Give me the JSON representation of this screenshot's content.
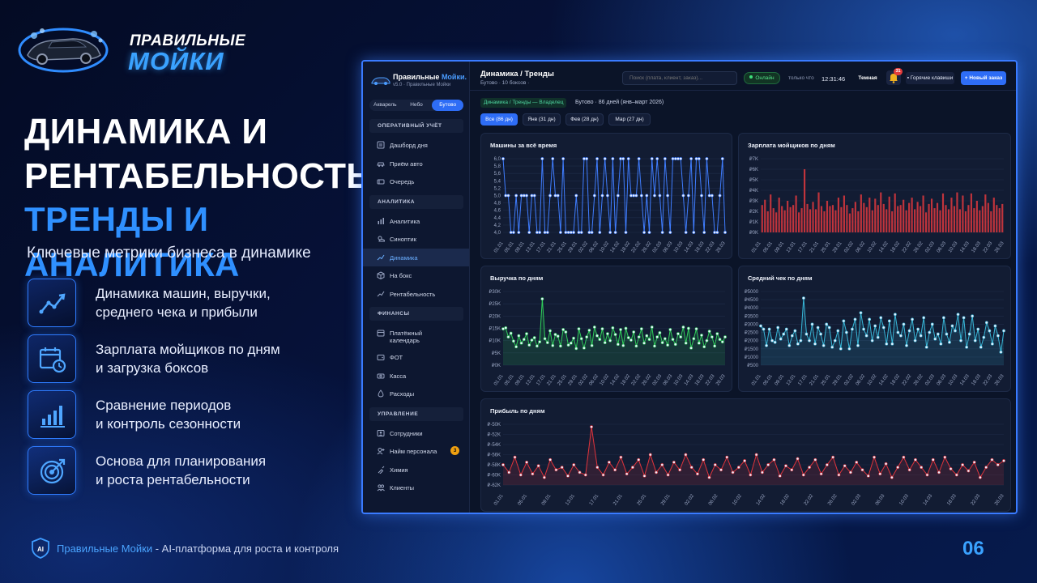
{
  "brand": {
    "line1": "ПРАВИЛЬНЫЕ",
    "line2": "МОЙКИ"
  },
  "headline": {
    "line1": "ДИНАМИКА И",
    "line2": "РЕНТАБЕЛЬНОСТЬ",
    "line3": "ТРЕНДЫ И АНАЛИТИКА"
  },
  "subtitle": "Ключевые метрики бизнеса в динамике",
  "features": [
    {
      "icon": "trend-line-icon",
      "line1": "Динамика машин, выручки,",
      "line2": "среднего чека и прибыли"
    },
    {
      "icon": "calendar-clock-icon",
      "line1": "Зарплата мойщиков по дням",
      "line2": "и загрузка боксов"
    },
    {
      "icon": "bar-chart-icon",
      "line1": "Сравнение периодов",
      "line2": "и контроль сезонности"
    },
    {
      "icon": "target-icon",
      "line1": "Основа для планирования",
      "line2": "и роста рентабельности"
    }
  ],
  "footer": {
    "brand": "Правильные Мойки",
    "rest": " - AI-платформа для роста и контроля",
    "badge": "AI"
  },
  "page_number": "06",
  "app": {
    "brand": {
      "name": "Правильные",
      "accent": "Мойки.",
      "sub": "v5.0 · Правильные Мойки"
    },
    "locations": [
      {
        "label": "Акварель",
        "active": false
      },
      {
        "label": "Небо",
        "active": false
      },
      {
        "label": "Бутово",
        "active": true
      }
    ],
    "sidebar": [
      {
        "group": "ОПЕРАТИВНЫЙ УЧЁТ",
        "items": [
          {
            "label": "Дашборд дня",
            "icon": "list-icon"
          },
          {
            "label": "Приём авто",
            "icon": "car-icon"
          },
          {
            "label": "Очередь",
            "icon": "queue-icon"
          }
        ]
      },
      {
        "group": "АНАЛИТИКА",
        "items": [
          {
            "label": "Аналитика",
            "icon": "bar-chart-icon"
          },
          {
            "label": "Синоптик",
            "icon": "weather-icon"
          },
          {
            "label": "Динамика",
            "icon": "trend-icon",
            "active": true
          },
          {
            "label": "На бокс",
            "icon": "box-icon"
          },
          {
            "label": "Рентабельность",
            "icon": "trend-icon"
          }
        ]
      },
      {
        "group": "ФИНАНСЫ",
        "items": [
          {
            "label": "Платёжный",
            "label2": "календарь",
            "icon": "calendar-icon"
          },
          {
            "label": "ФОТ",
            "icon": "wallet-icon"
          },
          {
            "label": "Касса",
            "icon": "cash-icon"
          },
          {
            "label": "Расходы",
            "icon": "drop-icon"
          }
        ]
      },
      {
        "group": "УПРАВЛЕНИЕ",
        "items": [
          {
            "label": "Сотрудники",
            "icon": "person-card-icon"
          },
          {
            "label": "Найм персонала",
            "icon": "add-person-icon",
            "badge": "3"
          },
          {
            "label": "Химия",
            "icon": "spray-icon"
          },
          {
            "label": "Клиенты",
            "icon": "people-icon"
          }
        ]
      }
    ],
    "topbar": {
      "title": "Динамика / Тренды",
      "subtitle": "Бутово · 10 боксов ·",
      "search_placeholder": "Поиск (плата, клиент, заказ)...",
      "status": "Онлайн",
      "updated": "только что",
      "time": "12:31:46",
      "theme": "Темная",
      "notifications": "31",
      "hotkeys": "Горячие клавиши",
      "new_order": "+ Новый заказ"
    },
    "breadcrumb": "Динамика / Тренды — Владелец",
    "period_info": "Бутово · 86 дней (янв–март 2026)",
    "period_tabs": [
      {
        "label": "Все (86 дн)",
        "active": true
      },
      {
        "label": "Янв (31 дн)",
        "active": false
      },
      {
        "label": "Фев (28 дн)",
        "active": false
      },
      {
        "label": "Мар (27 дн)",
        "active": false
      }
    ]
  },
  "chart_data": [
    {
      "id": "cars",
      "type": "line",
      "title": "Машины за всё время",
      "yticks": [
        "6,0",
        "5,8",
        "5,6",
        "5,4",
        "5,2",
        "5,0",
        "4,8",
        "4,6",
        "4,4",
        "4,2",
        "4,0"
      ],
      "ylim": [
        4.0,
        6.0
      ],
      "color": "#3f7dff",
      "xticks": [
        "01.01",
        "05.01",
        "09.01",
        "13.01",
        "17.01",
        "21.01",
        "25.01",
        "29.01",
        "02.02",
        "06.02",
        "10.02",
        "14.02",
        "18.02",
        "22.02",
        "26.02",
        "02.03",
        "06.03",
        "10.03",
        "14.03",
        "18.03",
        "22.03",
        "26.03"
      ],
      "values": [
        6,
        5,
        5,
        4,
        4,
        5,
        4,
        5,
        5,
        5,
        4,
        5,
        5,
        4,
        4,
        6,
        4,
        4,
        5,
        6,
        5,
        5,
        4,
        6,
        4,
        4,
        4,
        4,
        5,
        4,
        4,
        6,
        6,
        4,
        4,
        5,
        6,
        4,
        5,
        6,
        5,
        4,
        6,
        4,
        5,
        6,
        6,
        4,
        6,
        5,
        5,
        5,
        6,
        5,
        4,
        5,
        4,
        6,
        5,
        6,
        5,
        4,
        6,
        5,
        4,
        6,
        6,
        6,
        6,
        5,
        4,
        5,
        6,
        4,
        6,
        6,
        5,
        4,
        6,
        5,
        5,
        4,
        4,
        5,
        6,
        4
      ]
    },
    {
      "id": "salary",
      "type": "bar",
      "title": "Зарплата мойщиков по дням",
      "yticks": [
        "₽7K",
        "₽6K",
        "₽5K",
        "₽4K",
        "₽3K",
        "₽2K",
        "₽1K",
        "₽0K"
      ],
      "ylim": [
        0,
        7000
      ],
      "color": "#c0343c",
      "xticks": [
        "01.01",
        "05.01",
        "09.01",
        "13.01",
        "17.01",
        "21.01",
        "25.01",
        "29.01",
        "02.02",
        "06.02",
        "10.02",
        "14.02",
        "18.02",
        "22.02",
        "26.02",
        "02.03",
        "06.03",
        "10.03",
        "14.03",
        "18.03",
        "22.03",
        "26.03"
      ],
      "values": [
        2600,
        3100,
        2000,
        3600,
        2300,
        1900,
        3300,
        2500,
        2100,
        3000,
        2400,
        2600,
        3500,
        1900,
        2300,
        6000,
        2700,
        2200,
        2900,
        2200,
        3800,
        2500,
        2000,
        3000,
        2500,
        2600,
        2100,
        3300,
        2400,
        3500,
        2600,
        1800,
        2300,
        2900,
        2000,
        3600,
        2800,
        2400,
        3300,
        2100,
        3200,
        2600,
        3800,
        2700,
        2200,
        3400,
        2000,
        3700,
        2500,
        2600,
        3100,
        2100,
        2800,
        3300,
        2200,
        2900,
        2500,
        3500,
        1900,
        2700,
        3200,
        2300,
        2800,
        2100,
        3700,
        2600,
        2200,
        3300,
        2500,
        3800,
        2200,
        3500,
        2000,
        2600,
        3700,
        2300,
        3000,
        2100,
        2500,
        3600,
        2800,
        2000,
        3300,
        2600,
        2300,
        2700
      ]
    },
    {
      "id": "revenue",
      "type": "line",
      "title": "Выручка по дням",
      "yticks": [
        "₽30K",
        "₽25K",
        "₽20K",
        "₽15K",
        "₽10K",
        "₽5K",
        "₽0K"
      ],
      "ylim": [
        0,
        30000
      ],
      "color": "#2fcf5a",
      "xticks": [
        "01.01",
        "05.01",
        "09.01",
        "13.01",
        "17.01",
        "21.01",
        "25.01",
        "29.01",
        "02.02",
        "06.02",
        "10.02",
        "14.02",
        "18.02",
        "22.02",
        "26.02",
        "02.03",
        "06.03",
        "10.03",
        "14.03",
        "18.03",
        "22.03",
        "26.03"
      ],
      "values": [
        14800,
        15200,
        11500,
        13000,
        9800,
        7500,
        12000,
        9000,
        10500,
        12800,
        8200,
        10200,
        11200,
        7800,
        9500,
        27000,
        10800,
        9200,
        14000,
        8000,
        12500,
        11800,
        7800,
        14500,
        13500,
        8200,
        9000,
        11000,
        6800,
        14800,
        10800,
        7000,
        11500,
        14200,
        8000,
        15500,
        12000,
        10500,
        14800,
        9200,
        12800,
        10000,
        15200,
        12500,
        8500,
        14500,
        8000,
        15000,
        11200,
        10200,
        13500,
        7800,
        11500,
        14800,
        9000,
        12000,
        10500,
        15500,
        7800,
        11500,
        13200,
        9200,
        10800,
        8200,
        14500,
        10500,
        8500,
        12800,
        11500,
        15500,
        9000,
        15000,
        7000,
        10800,
        14800,
        9000,
        12200,
        7500,
        10000,
        13800,
        11500,
        7800,
        12800,
        10500,
        9500,
        11500
      ]
    },
    {
      "id": "avg_check",
      "type": "line",
      "title": "Средний чек по дням",
      "yticks": [
        "₽5000",
        "₽4500",
        "₽4000",
        "₽3500",
        "₽3000",
        "₽2500",
        "₽2000",
        "₽1500",
        "₽1000",
        "₽500"
      ],
      "ylim": [
        500,
        5000
      ],
      "color": "#38b7d8",
      "xticks": [
        "01.01",
        "05.01",
        "09.01",
        "13.01",
        "17.01",
        "21.01",
        "25.01",
        "29.01",
        "02.02",
        "06.02",
        "10.02",
        "14.02",
        "18.02",
        "22.02",
        "26.02",
        "02.03",
        "06.03",
        "10.03",
        "14.03",
        "18.03",
        "22.03",
        "26.03"
      ],
      "values": [
        2900,
        2700,
        1700,
        2700,
        2000,
        1900,
        2800,
        2100,
        2400,
        2700,
        1700,
        2300,
        2600,
        1800,
        2000,
        4600,
        2400,
        2000,
        3000,
        1800,
        2800,
        2400,
        1700,
        3000,
        2800,
        1600,
        2000,
        2600,
        1500,
        3200,
        2500,
        1500,
        2700,
        3300,
        1700,
        3700,
        2700,
        2300,
        3300,
        2000,
        2900,
        2200,
        3400,
        2800,
        1800,
        3200,
        1800,
        3600,
        2500,
        2300,
        3000,
        1700,
        2600,
        3300,
        2000,
        2700,
        2300,
        3400,
        1600,
        2500,
        3000,
        2100,
        2400,
        1800,
        3400,
        2400,
        1900,
        2900,
        2600,
        3600,
        2000,
        3400,
        1600,
        2400,
        3500,
        2000,
        2700,
        1600,
        2200,
        3100,
        2600,
        1800,
        2900,
        2300,
        1300,
        2600
      ]
    },
    {
      "id": "profit",
      "type": "line",
      "title": "Прибыль по дням",
      "yticks": [
        "₽-50K",
        "₽-52K",
        "₽-54K",
        "₽-56K",
        "₽-58K",
        "₽-60K",
        "₽-62K"
      ],
      "ylim": [
        -62000,
        -50000
      ],
      "color": "#e0343c",
      "xticks": [
        "01.01",
        "05.01",
        "09.01",
        "13.01",
        "17.01",
        "21.01",
        "25.01",
        "29.01",
        "02.02",
        "06.02",
        "10.02",
        "14.02",
        "18.02",
        "22.02",
        "26.02",
        "02.03",
        "06.03",
        "10.03",
        "14.03",
        "18.03",
        "22.03",
        "26.03"
      ],
      "values": [
        -58000,
        -59500,
        -56500,
        -60000,
        -57500,
        -59800,
        -58200,
        -60500,
        -57000,
        -59000,
        -58500,
        -60200,
        -58000,
        -59500,
        -60000,
        -50500,
        -58500,
        -60000,
        -57500,
        -59000,
        -56500,
        -59800,
        -58500,
        -57000,
        -60200,
        -56000,
        -59500,
        -58000,
        -60000,
        -57500,
        -59000,
        -56000,
        -58500,
        -59800,
        -57000,
        -60500,
        -58000,
        -59000,
        -56500,
        -59500,
        -58500,
        -57200,
        -60000,
        -56000,
        -59500,
        -58000,
        -57000,
        -60200,
        -58200,
        -59000,
        -56800,
        -60000,
        -58500,
        -57000,
        -59800,
        -58000,
        -56500,
        -60000,
        -58200,
        -59500,
        -57500,
        -59000,
        -60200,
        -56500,
        -59800,
        -57800,
        -60500,
        -58500,
        -56500,
        -59000,
        -57000,
        -58500,
        -60000,
        -57000,
        -59500,
        -56500,
        -58800,
        -60000,
        -58000,
        -59200,
        -57500,
        -60500,
        -58500,
        -57000,
        -58000,
        -57200
      ]
    }
  ]
}
